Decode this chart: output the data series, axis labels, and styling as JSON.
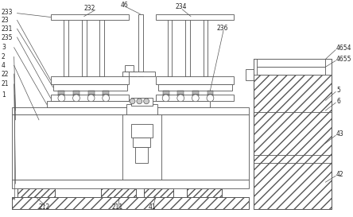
{
  "bg_color": "#ffffff",
  "line_color": "#555555",
  "label_color": "#222222",
  "figsize": [
    4.44,
    2.73
  ],
  "dpi": 100,
  "lw": 0.6
}
